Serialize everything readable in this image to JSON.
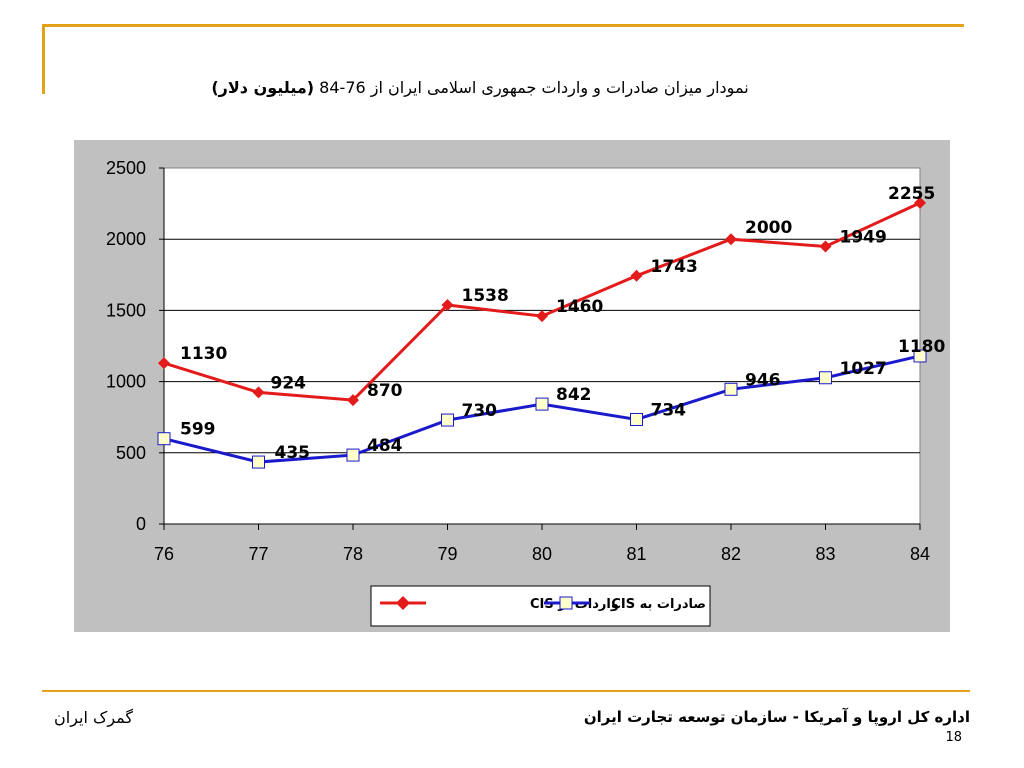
{
  "slide": {
    "title_main": "نمودار میزان صادرات و واردات جمهوری اسلامی ایران از 76-84",
    "title_unit": "(میلیون دلار)",
    "footer_left": "گمرک ایران",
    "footer_right": "اداره کل اروپا و آمریکا - سازمان توسعه تجارت ایران",
    "page_number": "18",
    "accent_color": "#e3a21a"
  },
  "chart_data": {
    "type": "line",
    "x": [
      "76",
      "77",
      "78",
      "79",
      "80",
      "81",
      "82",
      "83",
      "84"
    ],
    "ylim": [
      0,
      2500
    ],
    "yticks": [
      "0",
      "500",
      "1000",
      "1500",
      "2000",
      "2500"
    ],
    "grid": true,
    "legend_position": "bottom",
    "plot_background": "#ffffff",
    "chart_background": "#c0c0c0",
    "series": [
      {
        "name": "واردات از CIS",
        "color": "#e31b1b",
        "marker": "diamond",
        "values": [
          1130,
          924,
          870,
          1538,
          1460,
          1743,
          2000,
          1949,
          2255
        ]
      },
      {
        "name": "صادرات به CIS",
        "color": "#1a1acc",
        "marker": "square",
        "values": [
          599,
          435,
          484,
          730,
          842,
          734,
          946,
          1027,
          1180
        ]
      }
    ]
  }
}
